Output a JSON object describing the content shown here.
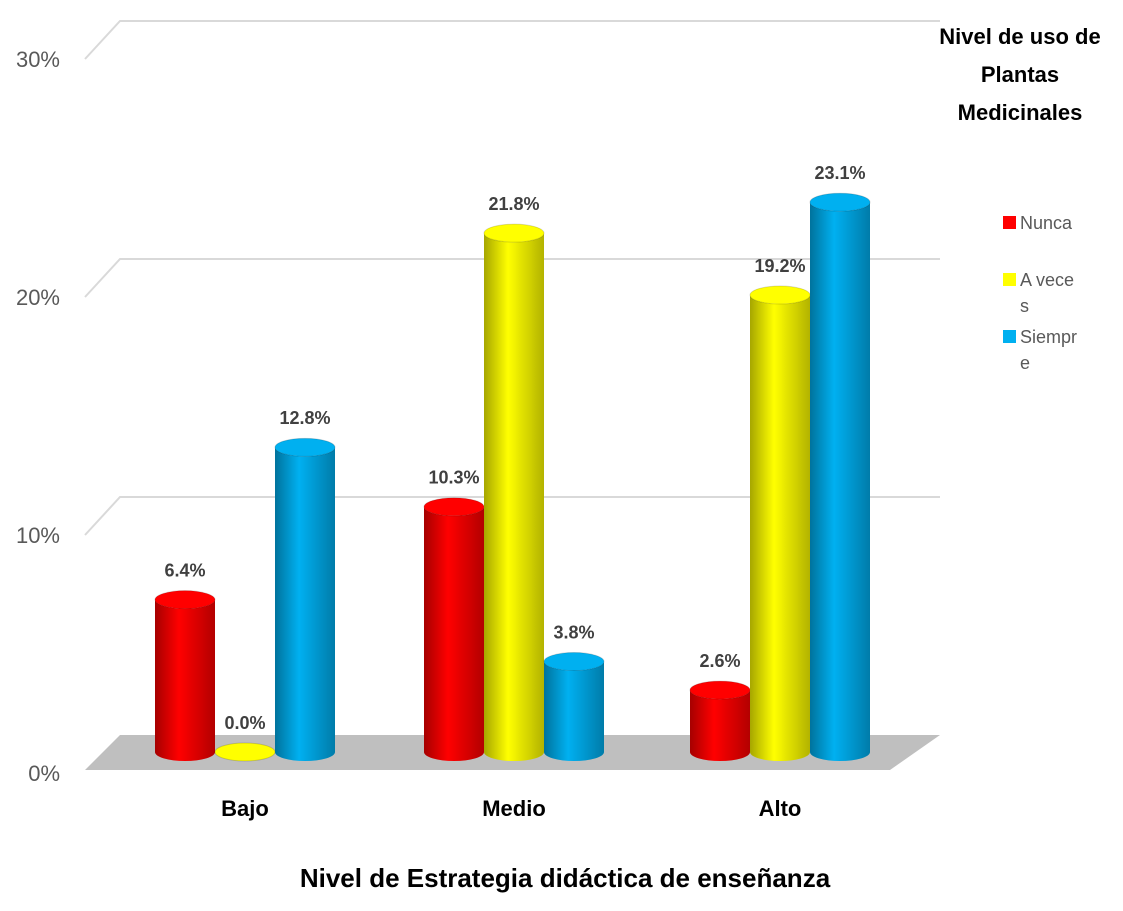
{
  "chart_data": {
    "type": "bar3d",
    "title": "Nivel de uso de Plantas Medicinales",
    "x_label": "Nivel de Estrategia didáctica de enseñanza",
    "categories": [
      "Bajo",
      "Medio",
      "Alto"
    ],
    "series": [
      {
        "name": "Nunca",
        "color": "#ff0000",
        "values": [
          6.4,
          10.3,
          2.6
        ],
        "value_labels": [
          "6.4%",
          "10.3%",
          "2.6%"
        ]
      },
      {
        "name": "A veces",
        "color": "#ffff00",
        "values": [
          0.0,
          21.8,
          19.2
        ],
        "value_labels": [
          "0.0%",
          "21.8%",
          "19.2%"
        ]
      },
      {
        "name": "Siempre",
        "color": "#00b0f0",
        "values": [
          12.8,
          3.8,
          23.1
        ],
        "value_labels": [
          "12.8%",
          "3.8%",
          "23.1%"
        ]
      }
    ],
    "ylim": [
      0,
      30
    ],
    "yticks": [
      {
        "value": 0,
        "label": "0%"
      },
      {
        "value": 10,
        "label": "10%"
      },
      {
        "value": 20,
        "label": "20%"
      },
      {
        "value": 30,
        "label": "30%"
      }
    ],
    "grid": true,
    "legend": "right"
  }
}
